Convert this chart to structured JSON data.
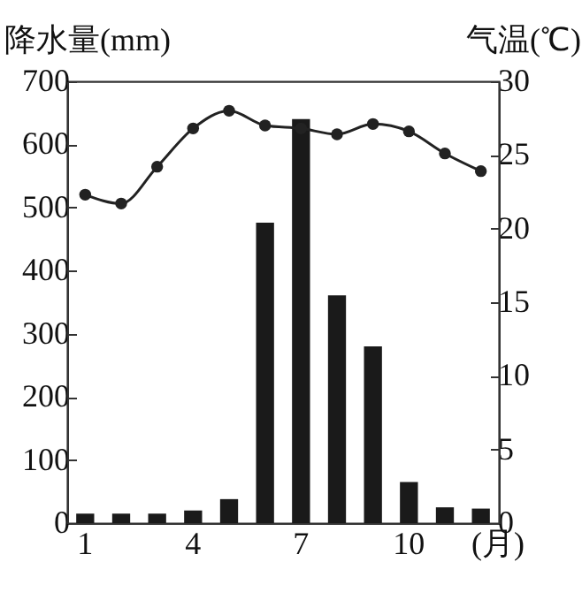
{
  "chart_data": {
    "type": "bar",
    "ylabel": "降水量(mm)",
    "y2label": "气温(℃)",
    "xlabel": "(月)",
    "categories": [
      "1",
      null,
      null,
      "4",
      null,
      null,
      "7",
      null,
      null,
      "10",
      null,
      null
    ],
    "series": [
      {
        "color": "#1a1a1a",
        "values": [
          15,
          15,
          15,
          20,
          38,
          476,
          640,
          361,
          280,
          65,
          25,
          23
        ]
      },
      {
        "type": "line",
        "axis": "y2",
        "color": "#222222",
        "values": [
          22.3,
          21.7,
          24.2,
          26.8,
          28.0,
          27.0,
          26.8,
          26.4,
          27.1,
          26.6,
          25.1,
          23.9
        ]
      }
    ],
    "ylim": [
      0,
      700
    ],
    "yticks": [
      0,
      100,
      200,
      300,
      400,
      500,
      600,
      700
    ],
    "y2lim": [
      0,
      30
    ],
    "y2ticks": [
      0,
      5,
      10,
      15,
      20,
      25,
      30
    ],
    "marker": "circle",
    "grid": false
  }
}
